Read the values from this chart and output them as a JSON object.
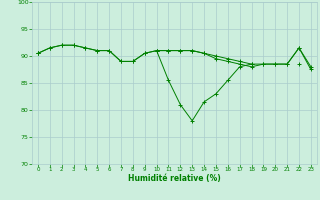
{
  "x": [
    0,
    1,
    2,
    3,
    4,
    5,
    6,
    7,
    8,
    9,
    10,
    11,
    12,
    13,
    14,
    15,
    16,
    17,
    18,
    19,
    20,
    21,
    22,
    23
  ],
  "line1": [
    90.5,
    91.5,
    92.0,
    92.0,
    91.5,
    91.0,
    91.0,
    89.0,
    89.0,
    90.5,
    91.0,
    91.0,
    91.0,
    91.0,
    90.5,
    90.0,
    89.5,
    89.0,
    88.5,
    88.5,
    88.5,
    88.5,
    91.5,
    88.0
  ],
  "line2": [
    90.5,
    null,
    null,
    null,
    null,
    null,
    null,
    null,
    null,
    null,
    91.0,
    85.5,
    81.0,
    78.0,
    81.5,
    83.0,
    85.5,
    88.0,
    88.5,
    null,
    null,
    null,
    88.5,
    null
  ],
  "line3": [
    90.5,
    91.5,
    92.0,
    92.0,
    91.5,
    91.0,
    91.0,
    89.0,
    89.0,
    90.5,
    91.0,
    91.0,
    91.0,
    91.0,
    90.5,
    89.5,
    89.0,
    88.5,
    88.0,
    88.5,
    88.5,
    88.5,
    91.5,
    87.5
  ],
  "line_color": "#008000",
  "bg_color": "#cceedd",
  "grid_color": "#aacccc",
  "xlabel": "Humidité relative (%)",
  "xlabel_color": "#008000",
  "tick_color": "#008000",
  "ylim": [
    70,
    100
  ],
  "xlim": [
    -0.5,
    23.5
  ],
  "yticks": [
    70,
    75,
    80,
    85,
    90,
    95,
    100
  ],
  "xticks": [
    0,
    1,
    2,
    3,
    4,
    5,
    6,
    7,
    8,
    9,
    10,
    11,
    12,
    13,
    14,
    15,
    16,
    17,
    18,
    19,
    20,
    21,
    22,
    23
  ]
}
